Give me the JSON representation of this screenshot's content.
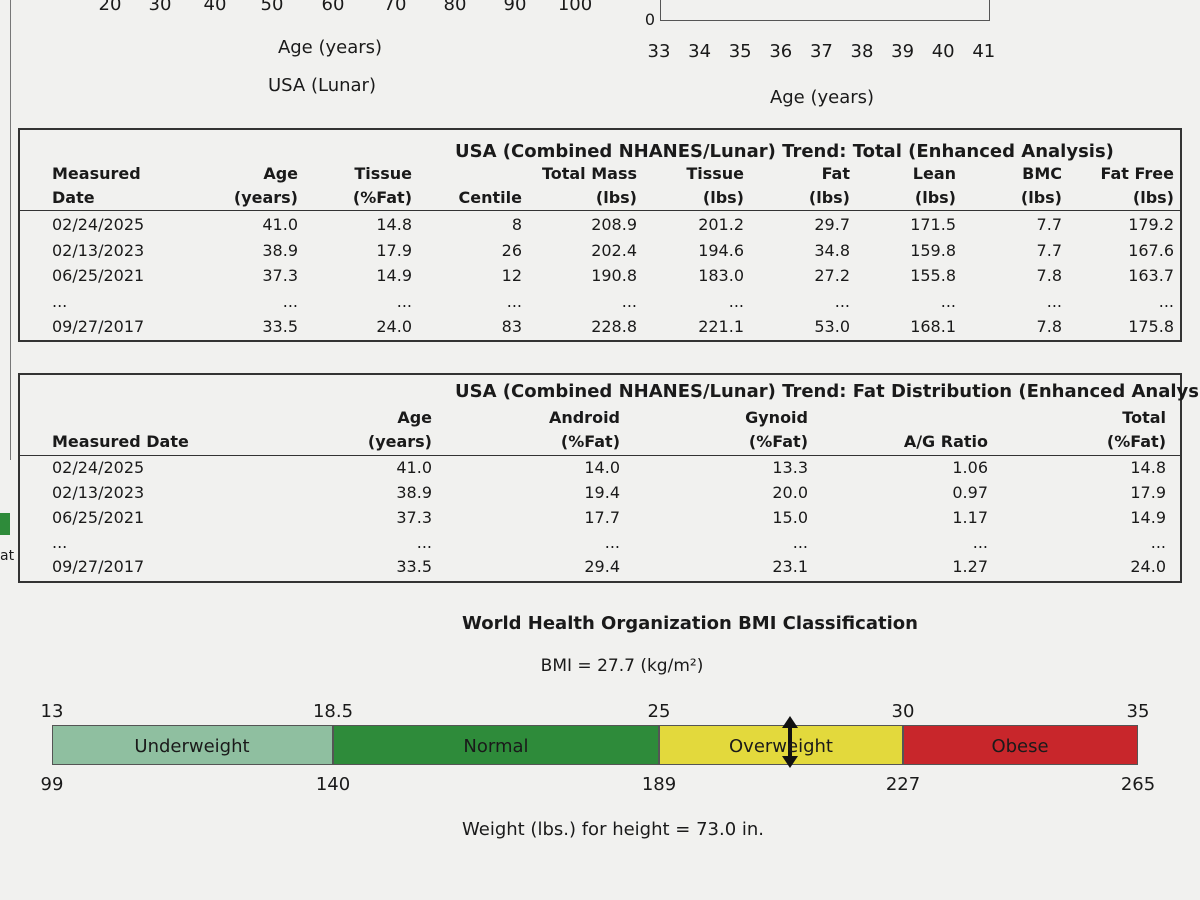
{
  "top_left_chart": {
    "x_ticks": [
      "20",
      "30",
      "40",
      "50",
      "60",
      "70",
      "80",
      "90",
      "100"
    ],
    "x_label": "Age (years)",
    "reference": "USA (Lunar)"
  },
  "top_right_chart": {
    "y_tick": "0",
    "x_ticks": [
      "33",
      "34",
      "35",
      "36",
      "37",
      "38",
      "39",
      "40",
      "41"
    ],
    "x_label": "Age (years)"
  },
  "side_fragment": "at",
  "table1": {
    "title": "USA (Combined NHANES/Lunar) Trend: Total (Enhanced Analysis)",
    "headers": [
      [
        "Measured",
        "Date"
      ],
      [
        "Age",
        "(years)"
      ],
      [
        "Tissue",
        "(%Fat)"
      ],
      [
        "Centile"
      ],
      [
        "Total Mass",
        "(lbs)"
      ],
      [
        "Tissue",
        "(lbs)"
      ],
      [
        "Fat",
        "(lbs)"
      ],
      [
        "Lean",
        "(lbs)"
      ],
      [
        "BMC",
        "(lbs)"
      ],
      [
        "Fat Free",
        "(lbs)"
      ]
    ],
    "rows": [
      [
        "02/24/2025",
        "41.0",
        "14.8",
        "8",
        "208.9",
        "201.2",
        "29.7",
        "171.5",
        "7.7",
        "179.2"
      ],
      [
        "02/13/2023",
        "38.9",
        "17.9",
        "26",
        "202.4",
        "194.6",
        "34.8",
        "159.8",
        "7.7",
        "167.6"
      ],
      [
        "06/25/2021",
        "37.3",
        "14.9",
        "12",
        "190.8",
        "183.0",
        "27.2",
        "155.8",
        "7.8",
        "163.7"
      ],
      [
        "...",
        "...",
        "...",
        "...",
        "...",
        "...",
        "...",
        "...",
        "...",
        "..."
      ],
      [
        "09/27/2017",
        "33.5",
        "24.0",
        "83",
        "228.8",
        "221.1",
        "53.0",
        "168.1",
        "7.8",
        "175.8"
      ]
    ]
  },
  "table2": {
    "title": "USA (Combined NHANES/Lunar) Trend:  Fat Distribution (Enhanced Analysis)",
    "headers": [
      [
        "Measured Date"
      ],
      [
        "Age",
        "(years)"
      ],
      [
        "Android",
        "(%Fat)"
      ],
      [
        "Gynoid",
        "(%Fat)"
      ],
      [
        "A/G Ratio"
      ],
      [
        "Total",
        "(%Fat)"
      ]
    ],
    "rows": [
      [
        "02/24/2025",
        "41.0",
        "14.0",
        "13.3",
        "1.06",
        "14.8"
      ],
      [
        "02/13/2023",
        "38.9",
        "19.4",
        "20.0",
        "0.97",
        "17.9"
      ],
      [
        "06/25/2021",
        "37.3",
        "17.7",
        "15.0",
        "1.17",
        "14.9"
      ],
      [
        "...",
        "...",
        "...",
        "...",
        "...",
        "..."
      ],
      [
        "09/27/2017",
        "33.5",
        "29.4",
        "23.1",
        "1.27",
        "24.0"
      ]
    ]
  },
  "bmi": {
    "title": "World Health Organization BMI Classification",
    "bmi_label": "BMI = 27.7 (kg/m²)",
    "bmi_ticks": [
      "13",
      "18.5",
      "25",
      "30",
      "35"
    ],
    "weight_ticks": [
      "99",
      "140",
      "189",
      "227",
      "265"
    ],
    "segments": [
      "Underweight",
      "Normal",
      "Overweight",
      "Obese"
    ],
    "footer": "Weight (lbs.) for height = 73.0 in."
  }
}
